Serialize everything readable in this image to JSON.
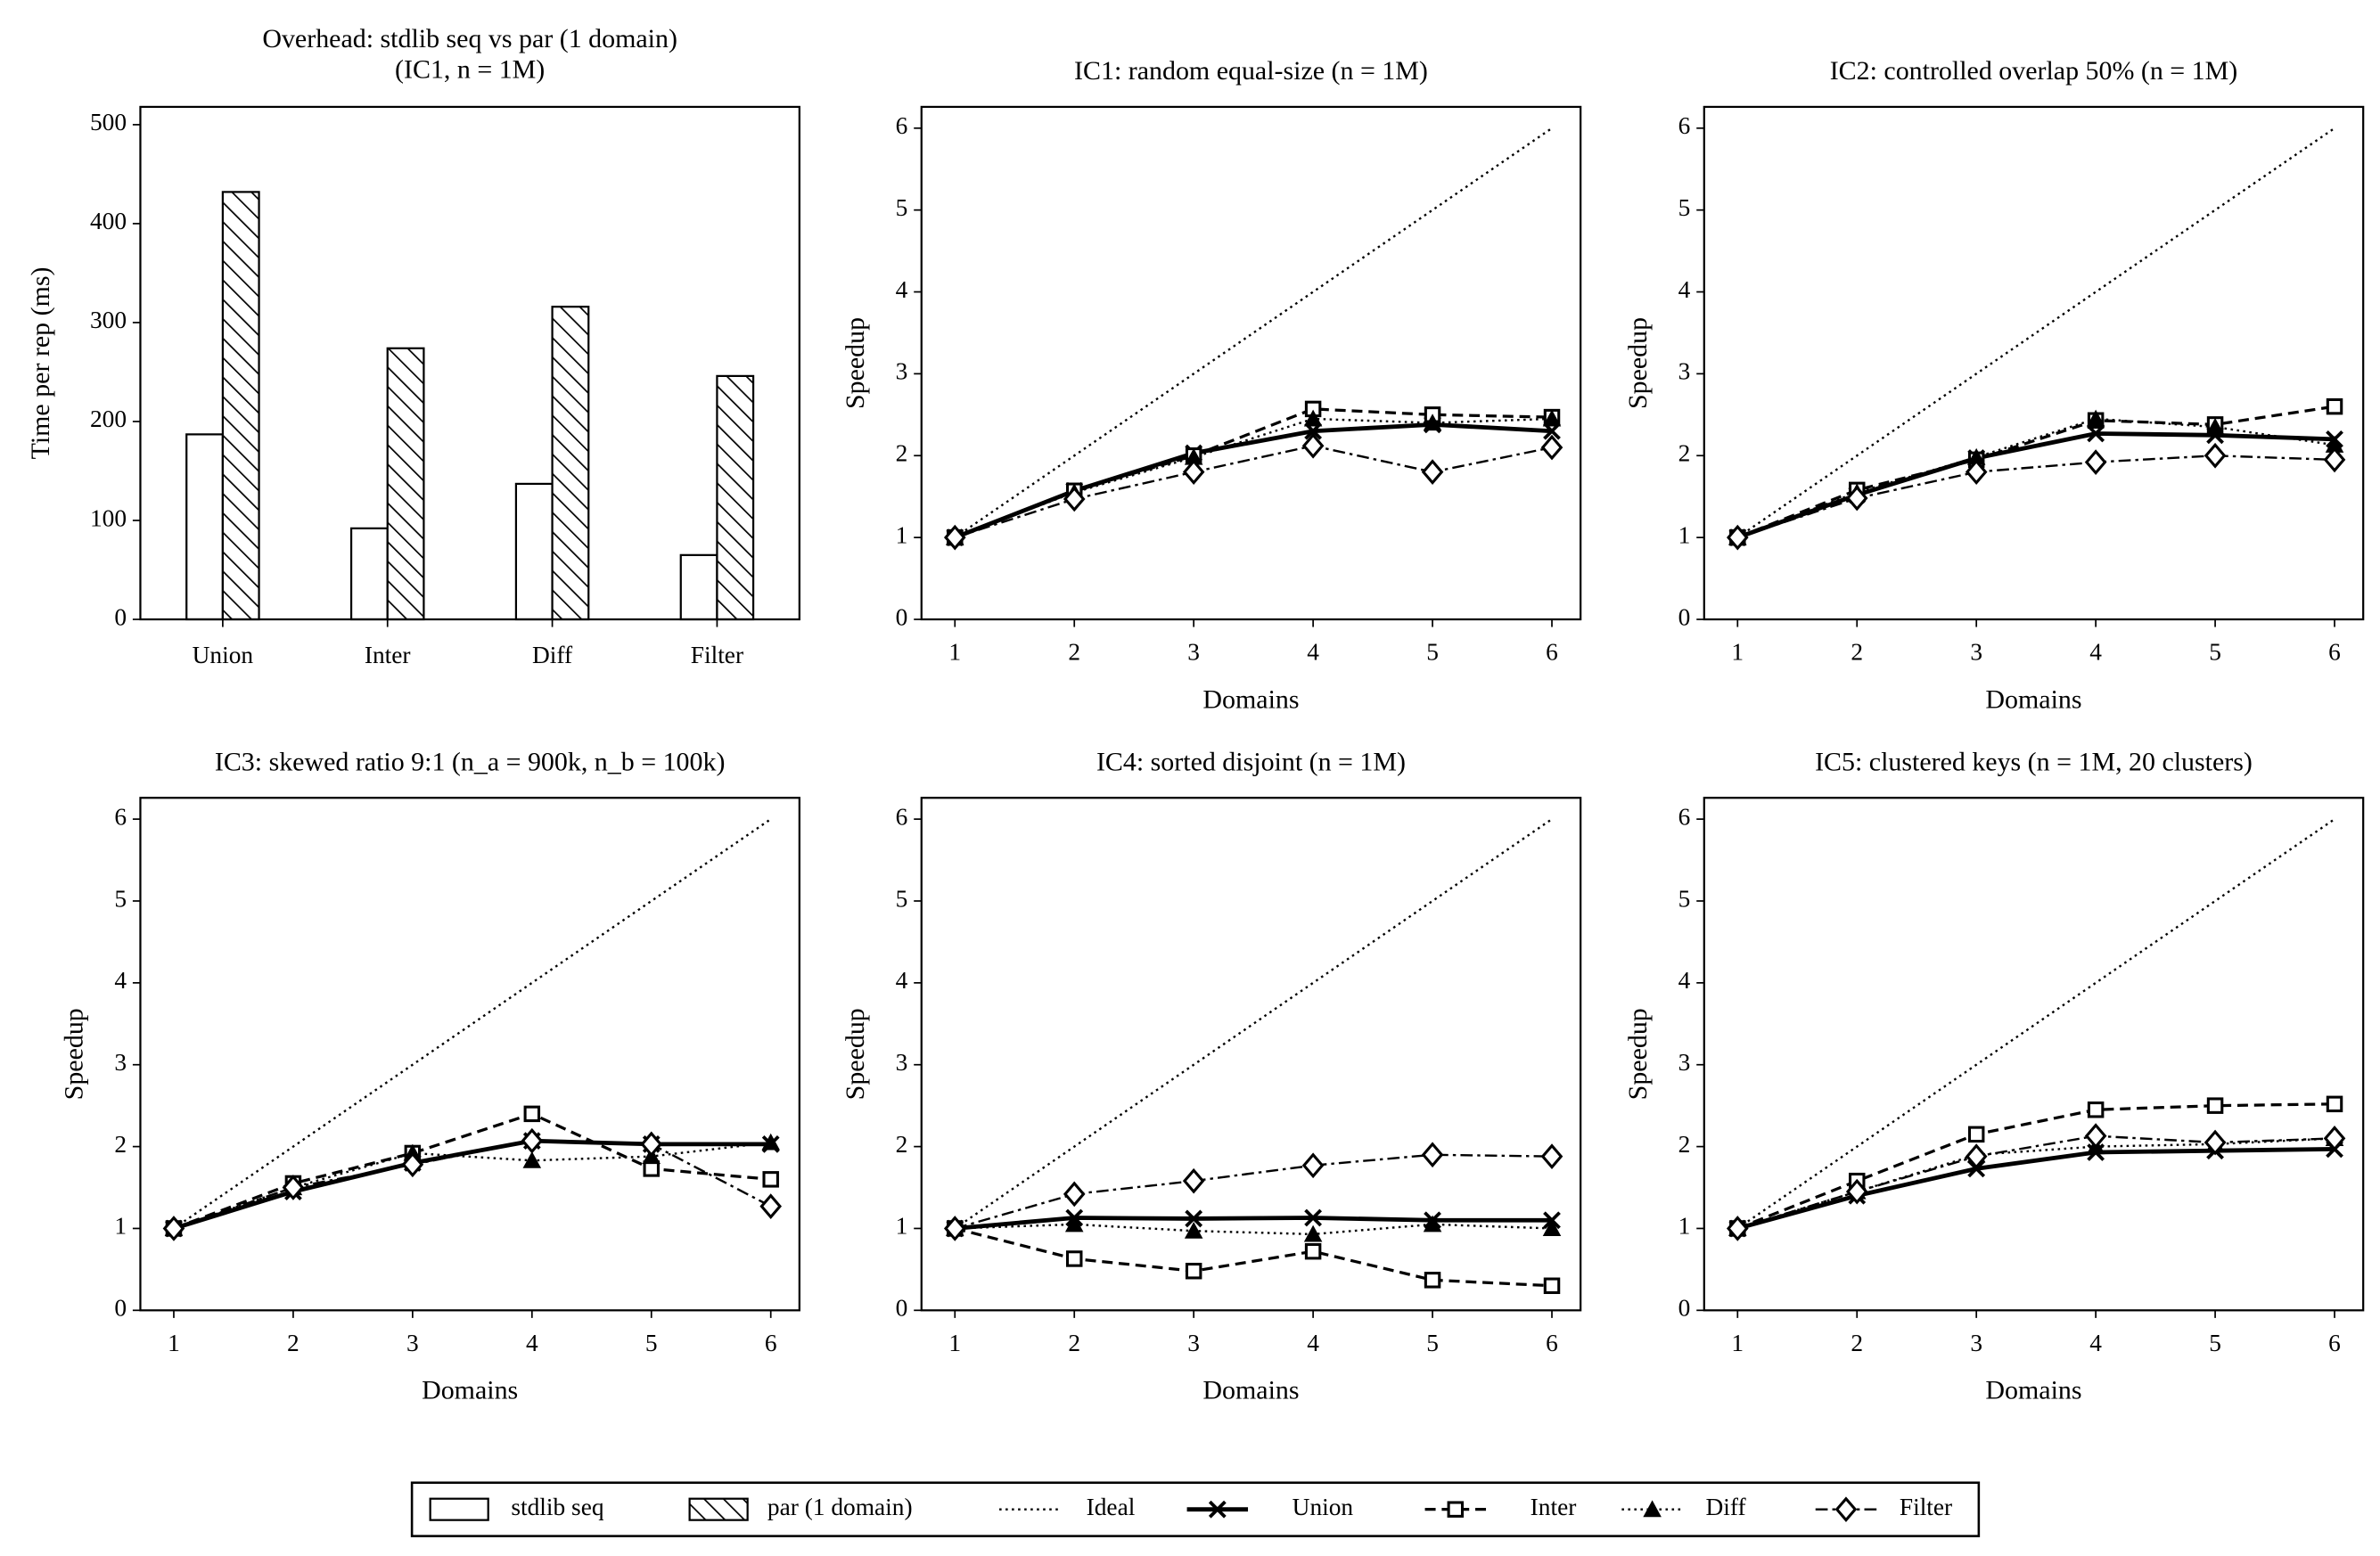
{
  "chart_data": [
    {
      "type": "bar",
      "title": [
        "Overhead: stdlib seq vs par (1 domain)",
        "(IC1, n = 1M)"
      ],
      "categories": [
        "Union",
        "Inter",
        "Diff",
        "Filter"
      ],
      "series": [
        {
          "name": "stdlib seq",
          "color": "#ffffff",
          "hatch": "none",
          "values": [
            187,
            92,
            137,
            65
          ]
        },
        {
          "name": "par (1 domain)",
          "color": "#ffffff",
          "hatch": "//",
          "values": [
            432,
            274,
            316,
            246
          ]
        }
      ],
      "y_label": "Time per rep (ms)",
      "ylim": [
        0,
        518
      ],
      "yticks": [
        0,
        100,
        200,
        300,
        400,
        500
      ]
    },
    {
      "type": "line",
      "title": "IC1: random equal-size (n = 1M)",
      "x_label": "Domains",
      "y_label": "Speedup",
      "x": [
        1,
        2,
        3,
        4,
        5,
        6
      ],
      "xlim": [
        0.72,
        6.24
      ],
      "xticks": [
        1,
        2,
        3,
        4,
        5,
        6
      ],
      "ylim": [
        0,
        6.26
      ],
      "yticks": [
        0,
        1,
        2,
        3,
        4,
        5,
        6
      ],
      "series": [
        {
          "name": "Ideal",
          "color": "#000000",
          "linestyle": "dotted",
          "marker": "none",
          "values": [
            1,
            2,
            3,
            4,
            5,
            6
          ]
        },
        {
          "name": "Union",
          "color": "#000000",
          "linestyle": "solid",
          "marker": "x",
          "values": [
            1,
            1.57,
            2.03,
            2.3,
            2.38,
            2.3
          ]
        },
        {
          "name": "Inter",
          "color": "#000000",
          "linestyle": "dashed",
          "marker": "square",
          "values": [
            1,
            1.57,
            2.0,
            2.57,
            2.5,
            2.47
          ]
        },
        {
          "name": "Diff",
          "color": "#000000",
          "linestyle": "dotted",
          "marker": "triangle",
          "values": [
            1,
            1.55,
            1.98,
            2.45,
            2.4,
            2.45
          ]
        },
        {
          "name": "Filter",
          "color": "#000000",
          "linestyle": "dashdot",
          "marker": "diamond",
          "values": [
            1,
            1.47,
            1.8,
            2.12,
            1.8,
            2.1
          ]
        }
      ]
    },
    {
      "type": "line",
      "title": "IC2: controlled overlap 50% (n = 1M)",
      "x_label": "Domains",
      "y_label": "Speedup",
      "x": [
        1,
        2,
        3,
        4,
        5,
        6
      ],
      "xlim": [
        0.72,
        6.24
      ],
      "xticks": [
        1,
        2,
        3,
        4,
        5,
        6
      ],
      "ylim": [
        0,
        6.26
      ],
      "yticks": [
        0,
        1,
        2,
        3,
        4,
        5,
        6
      ],
      "series": [
        {
          "name": "Ideal",
          "color": "#000000",
          "linestyle": "dotted",
          "marker": "none",
          "values": [
            1,
            2,
            3,
            4,
            5,
            6
          ]
        },
        {
          "name": "Union",
          "color": "#000000",
          "linestyle": "solid",
          "marker": "x",
          "values": [
            1,
            1.52,
            1.97,
            2.27,
            2.25,
            2.2
          ]
        },
        {
          "name": "Inter",
          "color": "#000000",
          "linestyle": "dashed",
          "marker": "square",
          "values": [
            1,
            1.58,
            1.95,
            2.43,
            2.38,
            2.6
          ]
        },
        {
          "name": "Diff",
          "color": "#000000",
          "linestyle": "dotted",
          "marker": "triangle",
          "values": [
            1,
            1.55,
            1.98,
            2.45,
            2.35,
            2.13
          ]
        },
        {
          "name": "Filter",
          "color": "#000000",
          "linestyle": "dashdot",
          "marker": "diamond",
          "values": [
            1,
            1.48,
            1.8,
            1.92,
            2.0,
            1.95
          ]
        }
      ]
    },
    {
      "type": "line",
      "title": "IC3: skewed ratio 9:1 (n_a = 900k, n_b = 100k)",
      "x_label": "Domains",
      "y_label": "Speedup",
      "x": [
        1,
        2,
        3,
        4,
        5,
        6
      ],
      "xlim": [
        0.72,
        6.24
      ],
      "xticks": [
        1,
        2,
        3,
        4,
        5,
        6
      ],
      "ylim": [
        0,
        6.26
      ],
      "yticks": [
        0,
        1,
        2,
        3,
        4,
        5,
        6
      ],
      "series": [
        {
          "name": "Ideal",
          "color": "#000000",
          "linestyle": "dotted",
          "marker": "none",
          "values": [
            1,
            2,
            3,
            4,
            5,
            6
          ]
        },
        {
          "name": "Union",
          "color": "#000000",
          "linestyle": "solid",
          "marker": "x",
          "values": [
            1,
            1.45,
            1.8,
            2.07,
            2.03,
            2.03
          ]
        },
        {
          "name": "Inter",
          "color": "#000000",
          "linestyle": "dashed",
          "marker": "square",
          "values": [
            1,
            1.55,
            1.92,
            2.4,
            1.73,
            1.6
          ]
        },
        {
          "name": "Diff",
          "color": "#000000",
          "linestyle": "dotted",
          "marker": "triangle",
          "values": [
            1,
            1.5,
            1.92,
            1.83,
            1.88,
            2.05
          ]
        },
        {
          "name": "Filter",
          "color": "#000000",
          "linestyle": "dashdot",
          "marker": "diamond",
          "values": [
            1,
            1.5,
            1.78,
            2.07,
            2.03,
            1.27
          ]
        }
      ]
    },
    {
      "type": "line",
      "title": "IC4: sorted disjoint (n = 1M)",
      "x_label": "Domains",
      "y_label": "Speedup",
      "x": [
        1,
        2,
        3,
        4,
        5,
        6
      ],
      "xlim": [
        0.72,
        6.24
      ],
      "xticks": [
        1,
        2,
        3,
        4,
        5,
        6
      ],
      "ylim": [
        0,
        6.26
      ],
      "yticks": [
        0,
        1,
        2,
        3,
        4,
        5,
        6
      ],
      "series": [
        {
          "name": "Ideal",
          "color": "#000000",
          "linestyle": "dotted",
          "marker": "none",
          "values": [
            1,
            2,
            3,
            4,
            5,
            6
          ]
        },
        {
          "name": "Union",
          "color": "#000000",
          "linestyle": "solid",
          "marker": "x",
          "values": [
            1,
            1.13,
            1.12,
            1.13,
            1.1,
            1.1
          ]
        },
        {
          "name": "Inter",
          "color": "#000000",
          "linestyle": "dashed",
          "marker": "square",
          "values": [
            1,
            0.63,
            0.48,
            0.72,
            0.37,
            0.3
          ]
        },
        {
          "name": "Diff",
          "color": "#000000",
          "linestyle": "dotted",
          "marker": "triangle",
          "values": [
            1,
            1.05,
            0.97,
            0.93,
            1.05,
            1.0
          ]
        },
        {
          "name": "Filter",
          "color": "#000000",
          "linestyle": "dashdot",
          "marker": "diamond",
          "values": [
            1,
            1.42,
            1.58,
            1.77,
            1.9,
            1.88
          ]
        }
      ]
    },
    {
      "type": "line",
      "title": "IC5: clustered keys (n = 1M, 20 clusters)",
      "x_label": "Domains",
      "y_label": "Speedup",
      "x": [
        1,
        2,
        3,
        4,
        5,
        6
      ],
      "xlim": [
        0.72,
        6.24
      ],
      "xticks": [
        1,
        2,
        3,
        4,
        5,
        6
      ],
      "ylim": [
        0,
        6.26
      ],
      "yticks": [
        0,
        1,
        2,
        3,
        4,
        5,
        6
      ],
      "series": [
        {
          "name": "Ideal",
          "color": "#000000",
          "linestyle": "dotted",
          "marker": "none",
          "values": [
            1,
            2,
            3,
            4,
            5,
            6
          ]
        },
        {
          "name": "Union",
          "color": "#000000",
          "linestyle": "solid",
          "marker": "x",
          "values": [
            1,
            1.4,
            1.73,
            1.93,
            1.95,
            1.97
          ]
        },
        {
          "name": "Inter",
          "color": "#000000",
          "linestyle": "dashed",
          "marker": "square",
          "values": [
            1,
            1.58,
            2.15,
            2.45,
            2.5,
            2.52
          ]
        },
        {
          "name": "Diff",
          "color": "#000000",
          "linestyle": "dotted",
          "marker": "triangle",
          "values": [
            1,
            1.45,
            1.9,
            2.0,
            2.03,
            2.1
          ]
        },
        {
          "name": "Filter",
          "color": "#000000",
          "linestyle": "dashdot",
          "marker": "diamond",
          "values": [
            1,
            1.45,
            1.88,
            2.13,
            2.05,
            2.1
          ]
        }
      ]
    }
  ]
}
